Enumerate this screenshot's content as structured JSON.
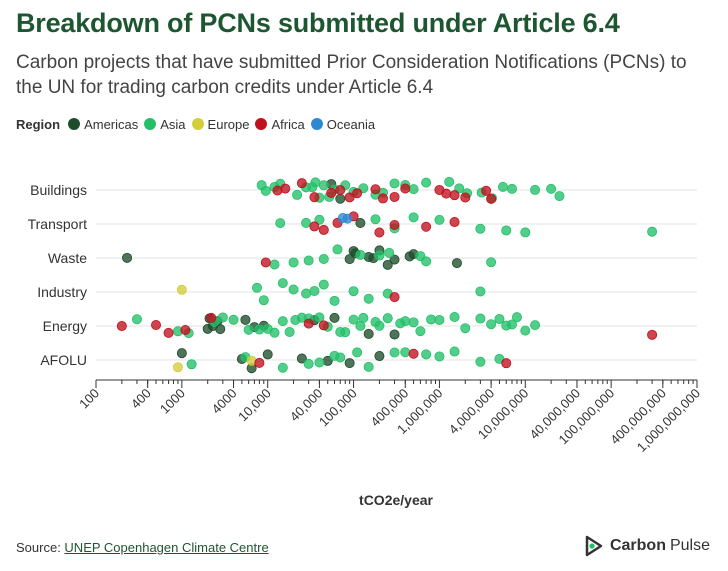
{
  "header": {
    "title": "Breakdown of PCNs submitted under Article 6.4",
    "subtitle": "Carbon projects that have submitted Prior Consideration Notifications (PCNs) to the UN for trading carbon credits under Article 6.4"
  },
  "legend": {
    "title": "Region",
    "items": [
      {
        "label": "Americas",
        "color": "#1d4d2c"
      },
      {
        "label": "Asia",
        "color": "#22c069"
      },
      {
        "label": "Europe",
        "color": "#d4cd3a"
      },
      {
        "label": "Africa",
        "color": "#c0111e"
      },
      {
        "label": "Oceania",
        "color": "#2e88d4"
      }
    ]
  },
  "chart_data": {
    "type": "scatter",
    "xlabel": "tCO2e/year",
    "x_scale": "log",
    "xlim": [
      100,
      1000000000
    ],
    "x_ticks": [
      {
        "value": 100,
        "label": "100"
      },
      {
        "value": 400,
        "label": "400"
      },
      {
        "value": 1000,
        "label": "1000"
      },
      {
        "value": 4000,
        "label": "4000"
      },
      {
        "value": 10000,
        "label": "10,000"
      },
      {
        "value": 40000,
        "label": "40,000"
      },
      {
        "value": 100000,
        "label": "100,000"
      },
      {
        "value": 400000,
        "label": "400,000"
      },
      {
        "value": 1000000,
        "label": "1,000,000"
      },
      {
        "value": 4000000,
        "label": "4,000,000"
      },
      {
        "value": 10000000,
        "label": "10,000,000"
      },
      {
        "value": 40000000,
        "label": "40,000,000"
      },
      {
        "value": 100000000,
        "label": "100,000,000"
      },
      {
        "value": 400000000,
        "label": "400,000,000"
      },
      {
        "value": 1000000000,
        "label": "1,000,000,000"
      }
    ],
    "categories": [
      "Buildings",
      "Transport",
      "Waste",
      "Industry",
      "Energy",
      "AFOLU"
    ],
    "series": [
      {
        "name": "Americas",
        "color": "#1d4d2c",
        "points": [
          [
            "Waste",
            230
          ],
          [
            "Waste",
            90000
          ],
          [
            "Waste",
            100000
          ],
          [
            "Waste",
            105000
          ],
          [
            "Waste",
            150000
          ],
          [
            "Waste",
            170000
          ],
          [
            "Waste",
            200000
          ],
          [
            "Waste",
            250000
          ],
          [
            "Waste",
            300000
          ],
          [
            "Waste",
            450000
          ],
          [
            "Waste",
            500000
          ],
          [
            "Waste",
            1600000
          ],
          [
            "Energy",
            2000
          ],
          [
            "Energy",
            2100
          ],
          [
            "Energy",
            2300
          ],
          [
            "Energy",
            2600
          ],
          [
            "Energy",
            2800
          ],
          [
            "Energy",
            5500
          ],
          [
            "Energy",
            7000
          ],
          [
            "Energy",
            9000
          ],
          [
            "Energy",
            35000
          ],
          [
            "Energy",
            60000
          ],
          [
            "Energy",
            150000
          ],
          [
            "Energy",
            300000
          ],
          [
            "AFOLU",
            1000
          ],
          [
            "AFOLU",
            5000
          ],
          [
            "AFOLU",
            6500
          ],
          [
            "AFOLU",
            10000
          ],
          [
            "AFOLU",
            25000
          ],
          [
            "AFOLU",
            50000
          ],
          [
            "AFOLU",
            90000
          ],
          [
            "AFOLU",
            200000
          ],
          [
            "Buildings",
            55000
          ],
          [
            "Buildings",
            70000
          ],
          [
            "Transport",
            120000
          ]
        ]
      },
      {
        "name": "Asia",
        "color": "#22c069",
        "points": [
          [
            "Buildings",
            8500
          ],
          [
            "Buildings",
            9500
          ],
          [
            "Buildings",
            12000
          ],
          [
            "Buildings",
            14000
          ],
          [
            "Buildings",
            22000
          ],
          [
            "Buildings",
            28000
          ],
          [
            "Buildings",
            33000
          ],
          [
            "Buildings",
            36000
          ],
          [
            "Buildings",
            40000
          ],
          [
            "Buildings",
            45000
          ],
          [
            "Buildings",
            52000
          ],
          [
            "Buildings",
            60000
          ],
          [
            "Buildings",
            80000
          ],
          [
            "Buildings",
            100000
          ],
          [
            "Buildings",
            130000
          ],
          [
            "Buildings",
            180000
          ],
          [
            "Buildings",
            220000
          ],
          [
            "Buildings",
            300000
          ],
          [
            "Buildings",
            400000
          ],
          [
            "Buildings",
            500000
          ],
          [
            "Buildings",
            700000
          ],
          [
            "Buildings",
            1300000
          ],
          [
            "Buildings",
            1700000
          ],
          [
            "Buildings",
            2100000
          ],
          [
            "Buildings",
            3100000
          ],
          [
            "Buildings",
            4100000
          ],
          [
            "Buildings",
            5500000
          ],
          [
            "Buildings",
            7000000
          ],
          [
            "Buildings",
            13000000
          ],
          [
            "Buildings",
            20000000
          ],
          [
            "Buildings",
            25000000
          ],
          [
            "Transport",
            14000
          ],
          [
            "Transport",
            28000
          ],
          [
            "Transport",
            40000
          ],
          [
            "Transport",
            180000
          ],
          [
            "Transport",
            300000
          ],
          [
            "Transport",
            500000
          ],
          [
            "Transport",
            1000000
          ],
          [
            "Transport",
            3000000
          ],
          [
            "Transport",
            6000000
          ],
          [
            "Transport",
            10000000
          ],
          [
            "Transport",
            300000000
          ],
          [
            "Waste",
            12000
          ],
          [
            "Waste",
            20000
          ],
          [
            "Waste",
            30000
          ],
          [
            "Waste",
            45000
          ],
          [
            "Waste",
            65000
          ],
          [
            "Waste",
            120000
          ],
          [
            "Waste",
            200000
          ],
          [
            "Waste",
            260000
          ],
          [
            "Waste",
            600000
          ],
          [
            "Waste",
            700000
          ],
          [
            "Waste",
            4000000
          ],
          [
            "Industry",
            7500
          ],
          [
            "Industry",
            9000
          ],
          [
            "Industry",
            15000
          ],
          [
            "Industry",
            20000
          ],
          [
            "Industry",
            28000
          ],
          [
            "Industry",
            35000
          ],
          [
            "Industry",
            45000
          ],
          [
            "Industry",
            60000
          ],
          [
            "Industry",
            100000
          ],
          [
            "Industry",
            150000
          ],
          [
            "Industry",
            250000
          ],
          [
            "Industry",
            3000000
          ],
          [
            "Energy",
            300
          ],
          [
            "Energy",
            900
          ],
          [
            "Energy",
            1200
          ],
          [
            "Energy",
            2400
          ],
          [
            "Energy",
            3000
          ],
          [
            "Energy",
            4000
          ],
          [
            "Energy",
            6000
          ],
          [
            "Energy",
            8000
          ],
          [
            "Energy",
            10000
          ],
          [
            "Energy",
            12000
          ],
          [
            "Energy",
            15000
          ],
          [
            "Energy",
            18000
          ],
          [
            "Energy",
            21000
          ],
          [
            "Energy",
            25000
          ],
          [
            "Energy",
            30000
          ],
          [
            "Energy",
            40000
          ],
          [
            "Energy",
            50000
          ],
          [
            "Energy",
            70000
          ],
          [
            "Energy",
            80000
          ],
          [
            "Energy",
            100000
          ],
          [
            "Energy",
            120000
          ],
          [
            "Energy",
            130000
          ],
          [
            "Energy",
            180000
          ],
          [
            "Energy",
            200000
          ],
          [
            "Energy",
            250000
          ],
          [
            "Energy",
            350000
          ],
          [
            "Energy",
            400000
          ],
          [
            "Energy",
            500000
          ],
          [
            "Energy",
            600000
          ],
          [
            "Energy",
            800000
          ],
          [
            "Energy",
            1000000
          ],
          [
            "Energy",
            1500000
          ],
          [
            "Energy",
            2000000
          ],
          [
            "Energy",
            3000000
          ],
          [
            "Energy",
            4000000
          ],
          [
            "Energy",
            5000000
          ],
          [
            "Energy",
            6000000
          ],
          [
            "Energy",
            7000000
          ],
          [
            "Energy",
            8000000
          ],
          [
            "Energy",
            10000000
          ],
          [
            "Energy",
            13000000
          ],
          [
            "AFOLU",
            1300
          ],
          [
            "AFOLU",
            5500
          ],
          [
            "AFOLU",
            15000
          ],
          [
            "AFOLU",
            30000
          ],
          [
            "AFOLU",
            40000
          ],
          [
            "AFOLU",
            60000
          ],
          [
            "AFOLU",
            70000
          ],
          [
            "AFOLU",
            110000
          ],
          [
            "AFOLU",
            150000
          ],
          [
            "AFOLU",
            300000
          ],
          [
            "AFOLU",
            400000
          ],
          [
            "AFOLU",
            700000
          ],
          [
            "AFOLU",
            1000000
          ],
          [
            "AFOLU",
            1500000
          ],
          [
            "AFOLU",
            3000000
          ],
          [
            "AFOLU",
            5000000
          ]
        ]
      },
      {
        "name": "Europe",
        "color": "#d4cd3a",
        "points": [
          [
            "Industry",
            1000
          ],
          [
            "AFOLU",
            6500
          ],
          [
            "AFOLU",
            900
          ]
        ]
      },
      {
        "name": "Africa",
        "color": "#c0111e",
        "points": [
          [
            "Buildings",
            13000
          ],
          [
            "Buildings",
            16000
          ],
          [
            "Buildings",
            25000
          ],
          [
            "Buildings",
            35000
          ],
          [
            "Buildings",
            55000
          ],
          [
            "Buildings",
            70000
          ],
          [
            "Buildings",
            90000
          ],
          [
            "Buildings",
            110000
          ],
          [
            "Buildings",
            180000
          ],
          [
            "Buildings",
            220000
          ],
          [
            "Buildings",
            300000
          ],
          [
            "Buildings",
            400000
          ],
          [
            "Buildings",
            1000000
          ],
          [
            "Buildings",
            1200000
          ],
          [
            "Buildings",
            1500000
          ],
          [
            "Buildings",
            2000000
          ],
          [
            "Buildings",
            3500000
          ],
          [
            "Buildings",
            4000000
          ],
          [
            "Transport",
            35000
          ],
          [
            "Transport",
            45000
          ],
          [
            "Transport",
            65000
          ],
          [
            "Transport",
            100000
          ],
          [
            "Transport",
            200000
          ],
          [
            "Transport",
            300000
          ],
          [
            "Transport",
            700000
          ],
          [
            "Transport",
            1500000
          ],
          [
            "Waste",
            9500
          ],
          [
            "Industry",
            300000
          ],
          [
            "Energy",
            200
          ],
          [
            "Energy",
            500
          ],
          [
            "Energy",
            700
          ],
          [
            "Energy",
            1100
          ],
          [
            "Energy",
            2200
          ],
          [
            "Energy",
            30000
          ],
          [
            "Energy",
            45000
          ],
          [
            "Energy",
            300000000
          ],
          [
            "AFOLU",
            8000
          ],
          [
            "AFOLU",
            500000
          ],
          [
            "AFOLU",
            6000000
          ]
        ]
      },
      {
        "name": "Oceania",
        "color": "#2e88d4",
        "points": [
          [
            "Transport",
            75000
          ],
          [
            "Transport",
            85000
          ]
        ]
      }
    ]
  },
  "footer": {
    "source_prefix": "Source: ",
    "source_link": "UNEP Copenhagen Climate Centre",
    "brand_bold": "Carbon",
    "brand_light": "Pulse"
  }
}
